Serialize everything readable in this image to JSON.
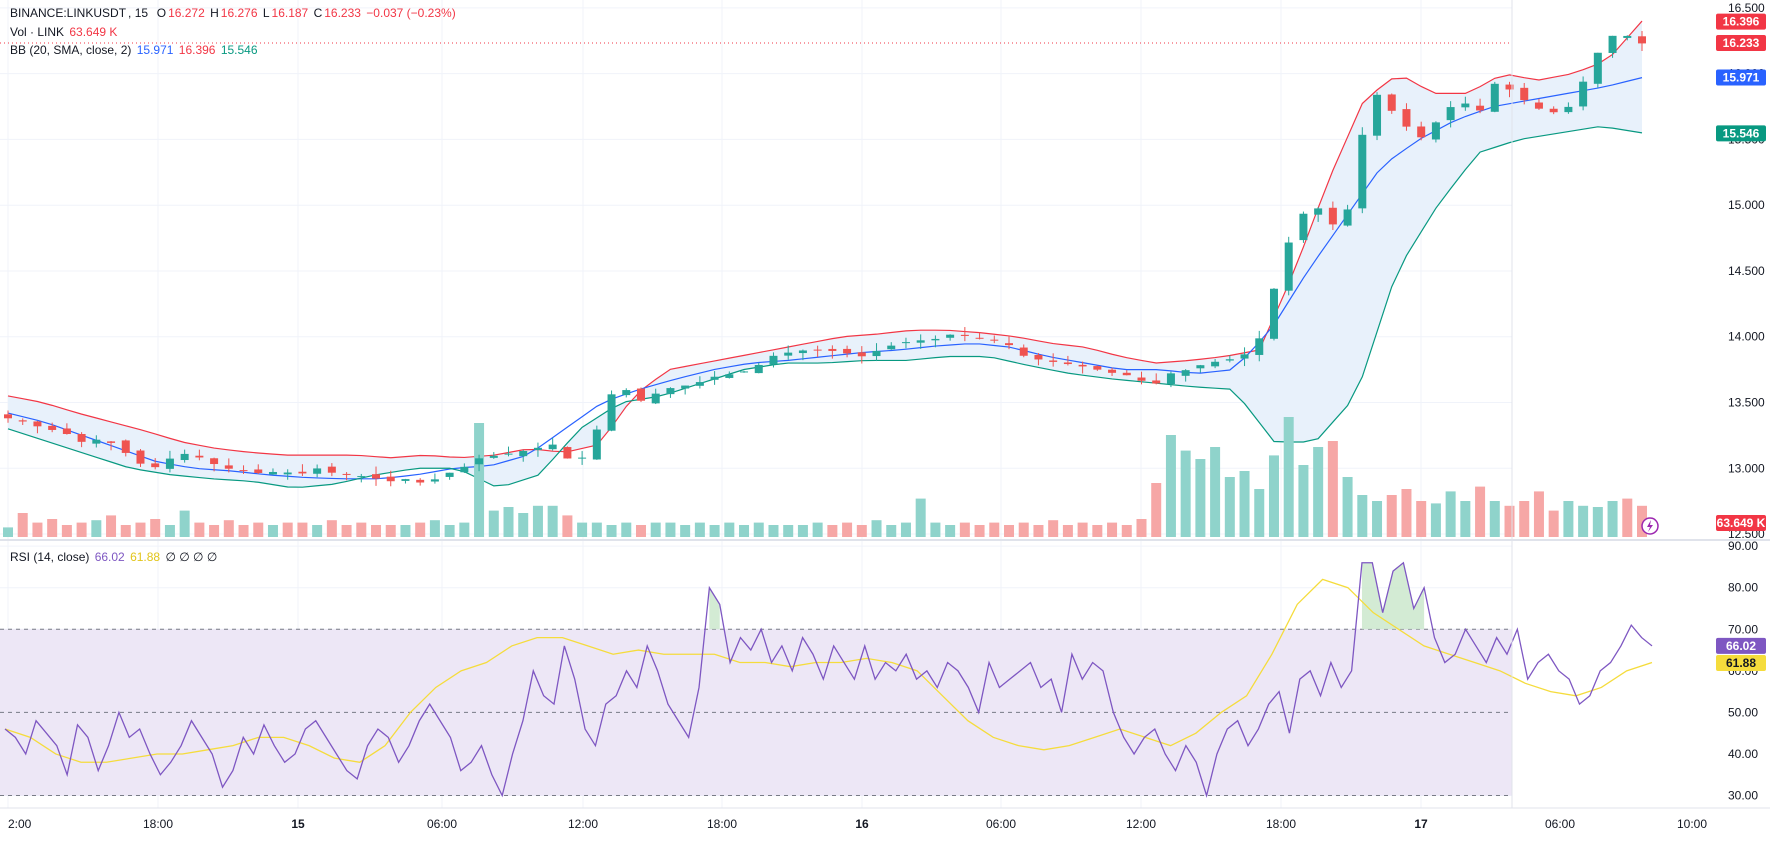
{
  "header": {
    "symbol": "BINANCE:LINKUSDT",
    "interval": "15",
    "o_label": "O",
    "o": "16.272",
    "h_label": "H",
    "h": "16.276",
    "l_label": "L",
    "l": "16.187",
    "c_label": "C",
    "c": "16.233",
    "change": "−0.037 (−0.23%)"
  },
  "volume_legend": {
    "label": "Vol · LINK",
    "value": "63.649 K"
  },
  "bb_legend": {
    "label": "BB (20, SMA, close, 2)",
    "basis": "15.971",
    "upper": "16.396",
    "lower": "15.546"
  },
  "rsi_legend": {
    "label": "RSI (14, close)",
    "rsi": "66.02",
    "ma": "61.88",
    "extras": "∅ ∅ ∅ ∅"
  },
  "price_badges": {
    "upper": "16.396",
    "last": "16.233",
    "basis": "15.971",
    "lower": "15.546",
    "volume": "63.649 K",
    "rsi": "66.02",
    "rsi_ma": "61.88"
  },
  "colors": {
    "up": "#26a69a",
    "down": "#ef5350",
    "bb_upper": "#f23645",
    "bb_basis": "#2962ff",
    "bb_lower": "#089981",
    "bb_fill": "#e8f1fb",
    "rsi": "#7e57c2",
    "rsi_ma": "#f5dc3c",
    "rsi_band": "#ede7f6",
    "vol_up": "#8fd3cb",
    "vol_down": "#f6a7a6"
  },
  "chart_data": [
    {
      "type": "candlestick",
      "title": "BINANCE:LINKUSDT",
      "interval": "15",
      "x_ticks": [
        "2:00",
        "18:00",
        "15",
        "06:00",
        "12:00",
        "18:00",
        "16",
        "06:00",
        "12:00",
        "18:00",
        "17",
        "06:00",
        "10:00"
      ],
      "y_ticks": [
        16.5,
        16.0,
        15.5,
        15.0,
        14.5,
        14.0,
        13.5,
        13.0,
        12.5
      ],
      "y_tick_labels": [
        "16.500",
        "16.000",
        "15.500",
        "15.000",
        "14.500",
        "14.000",
        "13.500",
        "13.000",
        "12.500"
      ],
      "ylim": [
        12.47,
        16.56
      ],
      "grid": true,
      "close_anchors": [
        13.38,
        13.35,
        13.3,
        13.28,
        13.2,
        13.22,
        13.18,
        13.05,
        13.0,
        13.08,
        13.12,
        13.05,
        13.0,
        12.98,
        12.96,
        12.98,
        12.95,
        13.0,
        12.96,
        12.95,
        12.93,
        12.9,
        12.92,
        12.88,
        12.95,
        13.0,
        13.08,
        13.1,
        13.12,
        13.15,
        13.18,
        13.05,
        13.1,
        13.55,
        13.6,
        13.5,
        13.6,
        13.62,
        13.65,
        13.7,
        13.72,
        13.75,
        13.85,
        13.88,
        13.9,
        13.9,
        13.88,
        13.85,
        13.9,
        13.95,
        13.97,
        13.98,
        14.02,
        14.0,
        13.98,
        13.95,
        13.85,
        13.82,
        13.8,
        13.78,
        13.75,
        13.72,
        13.7,
        13.62,
        13.72,
        13.75,
        13.8,
        13.82,
        13.85,
        14.0,
        14.5,
        14.9,
        15.0,
        14.85,
        15.0,
        15.9,
        15.75,
        15.6,
        15.5,
        15.7,
        15.8,
        15.7,
        15.95,
        15.85,
        15.75,
        15.7,
        15.75,
        16.0,
        16.28,
        16.3,
        16.23
      ],
      "bollinger": {
        "length": 20,
        "basis": "SMA",
        "source": "close",
        "stdev": 2,
        "upper_anchors": [
          13.55,
          13.5,
          13.42,
          13.35,
          13.28,
          13.2,
          13.15,
          13.12,
          13.1,
          13.1,
          13.1,
          13.08,
          13.1,
          13.08,
          13.1,
          13.15,
          13.12,
          13.18,
          13.55,
          13.75,
          13.8,
          13.85,
          13.9,
          13.95,
          14.0,
          14.02,
          14.05,
          14.05,
          14.03,
          14.0,
          13.95,
          13.92,
          13.85,
          13.8,
          13.82,
          13.85,
          13.9,
          14.5,
          15.2,
          15.8,
          16.0,
          15.85,
          15.85,
          16.0,
          15.95,
          16.0,
          16.1,
          16.4
        ],
        "basis_anchors": [
          13.42,
          13.35,
          13.25,
          13.15,
          13.05,
          13.0,
          12.98,
          12.95,
          12.93,
          12.92,
          12.92,
          12.95,
          13.0,
          13.02,
          13.1,
          13.3,
          13.5,
          13.6,
          13.68,
          13.75,
          13.8,
          13.82,
          13.85,
          13.88,
          13.9,
          13.93,
          13.95,
          13.92,
          13.85,
          13.8,
          13.75,
          13.75,
          13.72,
          13.75,
          14.05,
          14.5,
          14.9,
          15.3,
          15.5,
          15.65,
          15.75,
          15.8,
          15.85,
          15.9,
          15.97
        ],
        "lower_anchors": [
          13.3,
          13.2,
          13.1,
          13.0,
          12.95,
          12.92,
          12.9,
          12.85,
          12.88,
          12.95,
          13.0,
          13.0,
          12.85,
          12.95,
          13.3,
          13.5,
          13.55,
          13.65,
          13.75,
          13.8,
          13.8,
          13.82,
          13.82,
          13.85,
          13.85,
          13.78,
          13.72,
          13.68,
          13.65,
          13.62,
          13.6,
          13.2,
          13.2,
          13.55,
          14.5,
          15.0,
          15.4,
          15.5,
          15.55,
          15.6,
          15.55
        ]
      },
      "last_price": 16.233
    },
    {
      "type": "bar",
      "title": "Vol · LINK",
      "last_value": "63.649 K",
      "relative_heights": [
        0.08,
        0.2,
        0.12,
        0.15,
        0.1,
        0.12,
        0.14,
        0.18,
        0.1,
        0.12,
        0.15,
        0.1,
        0.22,
        0.12,
        0.1,
        0.14,
        0.1,
        0.12,
        0.1,
        0.12,
        0.12,
        0.1,
        0.14,
        0.1,
        0.12,
        0.1,
        0.1,
        0.1,
        0.12,
        0.14,
        0.1,
        0.12,
        0.95,
        0.22,
        0.25,
        0.2,
        0.26,
        0.26,
        0.18,
        0.12,
        0.12,
        0.1,
        0.12,
        0.1,
        0.12,
        0.12,
        0.1,
        0.12,
        0.1,
        0.12,
        0.1,
        0.12,
        0.1,
        0.1,
        0.1,
        0.12,
        0.1,
        0.12,
        0.1,
        0.14,
        0.1,
        0.12,
        0.32,
        0.12,
        0.1,
        0.12,
        0.1,
        0.12,
        0.1,
        0.12,
        0.1,
        0.14,
        0.1,
        0.12,
        0.1,
        0.12,
        0.1,
        0.15,
        0.45,
        0.85,
        0.72,
        0.65,
        0.75,
        0.5,
        0.55,
        0.4,
        0.68,
        1.0,
        0.6,
        0.75,
        0.8,
        0.5,
        0.35,
        0.3,
        0.35,
        0.4,
        0.3,
        0.28,
        0.38,
        0.3,
        0.42,
        0.3,
        0.26,
        0.3,
        0.38,
        0.22,
        0.3,
        0.26,
        0.25,
        0.3,
        0.32,
        0.26,
        0.22,
        0.2,
        0.58,
        0.4,
        0.24
      ]
    },
    {
      "type": "line",
      "title": "RSI (14, close)",
      "y_ticks": [
        90,
        80,
        70,
        60,
        50,
        40,
        30
      ],
      "y_tick_labels": [
        "90.00",
        "80.00",
        "70.00",
        "60.00",
        "50.00",
        "40.00",
        "30.00"
      ],
      "ylim": [
        27,
        91
      ],
      "levels": [
        70,
        50,
        30
      ],
      "rsi_anchors": [
        46,
        44,
        40,
        48,
        45,
        42,
        35,
        47,
        44,
        36,
        42,
        50,
        44,
        46,
        40,
        35,
        38,
        42,
        48,
        44,
        40,
        32,
        36,
        44,
        40,
        47,
        42,
        38,
        40,
        46,
        48,
        44,
        40,
        36,
        34,
        42,
        46,
        44,
        38,
        42,
        48,
        52,
        48,
        44,
        36,
        38,
        42,
        35,
        30,
        40,
        48,
        60,
        54,
        52,
        66,
        58,
        46,
        42,
        52,
        54,
        60,
        56,
        66,
        60,
        52,
        48,
        44,
        56,
        80,
        76,
        62,
        68,
        65,
        70,
        62,
        66,
        60,
        68,
        64,
        58,
        66,
        62,
        58,
        66,
        58,
        62,
        60,
        64,
        58,
        60,
        56,
        62,
        60,
        56,
        50,
        62,
        56,
        58,
        60,
        62,
        56,
        58,
        50,
        64,
        58,
        62,
        60,
        50,
        44,
        40,
        44,
        46,
        40,
        36,
        42,
        38,
        30,
        40,
        46,
        48,
        42,
        46,
        52,
        55,
        45,
        58,
        60,
        54,
        62,
        56,
        60,
        86,
        86,
        74,
        84,
        86,
        75,
        80,
        68,
        62,
        64,
        70,
        66,
        62,
        68,
        64,
        70,
        58,
        62,
        64,
        60,
        58,
        52,
        54,
        60,
        62,
        66,
        71,
        68,
        66
      ],
      "ma_anchors": [
        46,
        44,
        40,
        38,
        38,
        39,
        40,
        40,
        41,
        42,
        44,
        44,
        42,
        39,
        38,
        42,
        50,
        56,
        60,
        62,
        66,
        68,
        68,
        66,
        64,
        65,
        64,
        64,
        64,
        62,
        62,
        61,
        62,
        62,
        63,
        62,
        60,
        54,
        48,
        44,
        42,
        41,
        42,
        44,
        46,
        44,
        42,
        45,
        50,
        54,
        64,
        76,
        82,
        80,
        74,
        70,
        66,
        64,
        62,
        60,
        57,
        55,
        54,
        56,
        60,
        62
      ],
      "last_values": {
        "rsi": 66.02,
        "rsi_ma": 61.88
      }
    }
  ]
}
